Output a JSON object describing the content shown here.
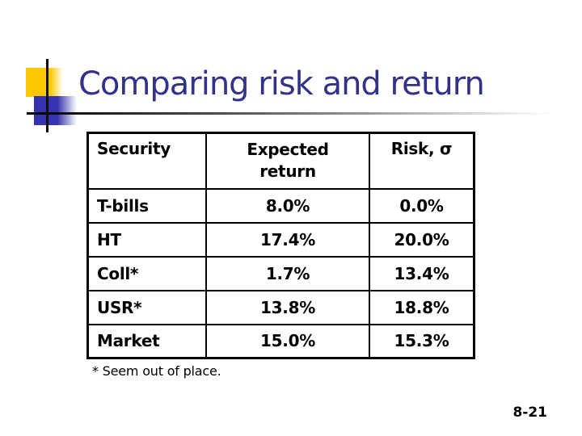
{
  "slide": {
    "title": "Comparing risk and return",
    "footnote": "* Seem out of place.",
    "page_number": "8-21"
  },
  "colors": {
    "background": "#FFFFFF",
    "title_text": "#323288",
    "accent_yellow": "#FCC700",
    "accent_blue": "#3534AE",
    "table_text": "#000000",
    "table_border": "#000000"
  },
  "chart_data": {
    "type": "table",
    "title": "Comparing risk and return",
    "columns": [
      "Security",
      "Expected return",
      "Risk, σ"
    ],
    "rows": [
      [
        "T-bills",
        "8.0%",
        "0.0%"
      ],
      [
        "HT",
        "17.4%",
        "20.0%"
      ],
      [
        "Coll*",
        "1.7%",
        "13.4%"
      ],
      [
        "USR*",
        "13.8%",
        "18.8%"
      ],
      [
        "Market",
        "15.0%",
        "15.3%"
      ]
    ]
  },
  "table": {
    "headers": [
      "Security",
      "Expected return",
      "Risk, σ"
    ],
    "rows": [
      [
        "T-bills",
        "8.0%",
        "0.0%"
      ],
      [
        "HT",
        "17.4%",
        "20.0%"
      ],
      [
        "Coll*",
        "1.7%",
        "13.4%"
      ],
      [
        "USR*",
        "13.8%",
        "18.8%"
      ],
      [
        "Market",
        "15.0%",
        "15.3%"
      ]
    ]
  }
}
